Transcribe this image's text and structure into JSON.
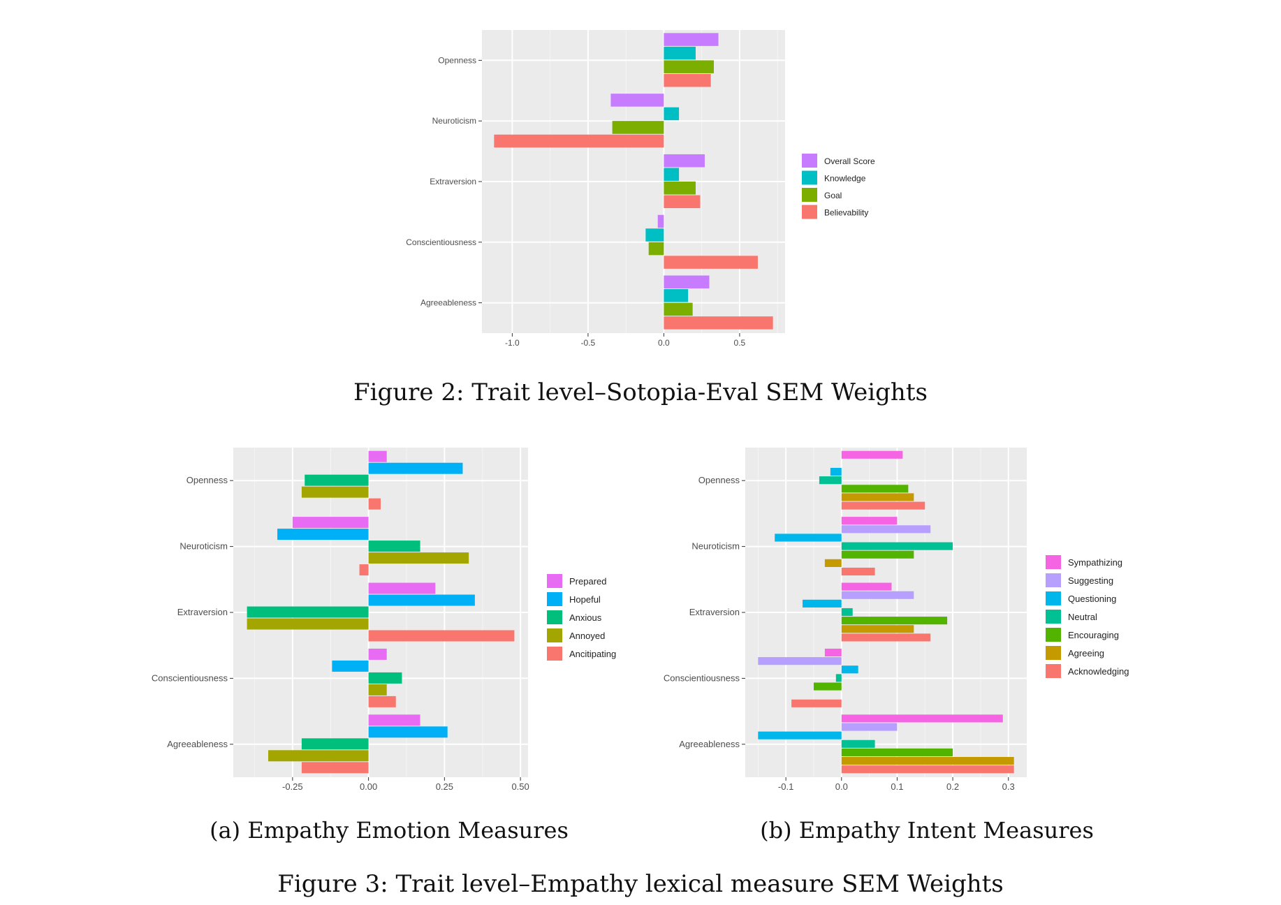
{
  "figure2": {
    "caption": "Figure 2: Trait level–Sotopia-Eval SEM Weights",
    "chart_data": {
      "type": "bar",
      "orientation": "horizontal",
      "categories": [
        "Openness",
        "Neuroticism",
        "Extraversion",
        "Conscientiousness",
        "Agreeableness"
      ],
      "series": [
        {
          "name": "Overall Score",
          "color": "#C77CFF",
          "values": [
            0.36,
            -0.35,
            0.27,
            -0.04,
            0.3
          ]
        },
        {
          "name": "Knowledge",
          "color": "#00BFC4",
          "values": [
            0.21,
            0.1,
            0.1,
            -0.12,
            0.16
          ]
        },
        {
          "name": "Goal",
          "color": "#7CAE00",
          "values": [
            0.33,
            -0.34,
            0.21,
            -0.1,
            0.19
          ]
        },
        {
          "name": "Believability",
          "color": "#F8766D",
          "values": [
            0.31,
            -1.12,
            0.24,
            0.62,
            0.72
          ]
        }
      ],
      "xlim": [
        -1.2,
        0.8
      ],
      "xticks": [
        -1.0,
        -0.5,
        0.0,
        0.5
      ],
      "xtick_labels": [
        "-1.0",
        "-0.5",
        "0.0",
        "0.5"
      ],
      "legend_position": "right",
      "grid": true
    }
  },
  "figure3a": {
    "caption": "(a) Empathy Emotion Measures",
    "chart_data": {
      "type": "bar",
      "orientation": "horizontal",
      "categories": [
        "Openness",
        "Neuroticism",
        "Extraversion",
        "Conscientiousness",
        "Agreeableness"
      ],
      "series": [
        {
          "name": "Prepared",
          "color": "#E76BF3",
          "values": [
            0.06,
            -0.25,
            0.22,
            0.06,
            0.17
          ]
        },
        {
          "name": "Hopeful",
          "color": "#00B0F6",
          "values": [
            0.31,
            -0.3,
            0.35,
            -0.12,
            0.26
          ]
        },
        {
          "name": "Anxious",
          "color": "#00BF7D",
          "values": [
            -0.21,
            0.17,
            -0.4,
            0.11,
            -0.22
          ]
        },
        {
          "name": "Annoyed",
          "color": "#A3A500",
          "values": [
            -0.22,
            0.33,
            -0.4,
            0.06,
            -0.33
          ]
        },
        {
          "name": "Ancitipating",
          "color": "#F8766D",
          "values": [
            0.04,
            -0.03,
            0.48,
            0.09,
            -0.22
          ]
        }
      ],
      "xlim": [
        -0.445,
        0.525
      ],
      "xticks": [
        -0.25,
        0.0,
        0.25,
        0.5
      ],
      "xtick_labels": [
        "-0.25",
        "0.00",
        "0.25",
        "0.50"
      ],
      "legend_position": "right",
      "grid": true
    }
  },
  "figure3b": {
    "caption": "(b) Empathy Intent Measures",
    "chart_data": {
      "type": "bar",
      "orientation": "horizontal",
      "categories": [
        "Openness",
        "Neuroticism",
        "Extraversion",
        "Conscientiousness",
        "Agreeableness"
      ],
      "series": [
        {
          "name": "Sympathizing",
          "color": "#F564E3",
          "values": [
            0.11,
            0.1,
            0.09,
            -0.03,
            0.29
          ]
        },
        {
          "name": "Suggesting",
          "color": "#B79FFF",
          "values": [
            null,
            0.16,
            0.13,
            -0.15,
            0.1
          ]
        },
        {
          "name": "Questioning",
          "color": "#00B6EB",
          "values": [
            -0.02,
            -0.12,
            -0.07,
            0.03,
            -0.15
          ]
        },
        {
          "name": "Neutral",
          "color": "#00C094",
          "values": [
            -0.04,
            0.2,
            0.02,
            -0.01,
            0.06
          ]
        },
        {
          "name": "Encouraging",
          "color": "#53B400",
          "values": [
            0.12,
            0.13,
            0.19,
            -0.05,
            0.2
          ]
        },
        {
          "name": "Agreeing",
          "color": "#C49A00",
          "values": [
            0.13,
            -0.03,
            0.13,
            null,
            0.31
          ]
        },
        {
          "name": "Acknowledging",
          "color": "#F8766D",
          "values": [
            0.15,
            0.06,
            0.16,
            -0.09,
            0.31
          ]
        }
      ],
      "xlim": [
        -0.173,
        0.333
      ],
      "xticks": [
        -0.1,
        0.0,
        0.1,
        0.2,
        0.3
      ],
      "xtick_labels": [
        "-0.1",
        "0.0",
        "0.1",
        "0.2",
        "0.3"
      ],
      "legend_position": "right",
      "grid": true
    }
  },
  "figure3": {
    "caption": "Figure 3: Trait level–Empathy lexical measure SEM Weights"
  }
}
